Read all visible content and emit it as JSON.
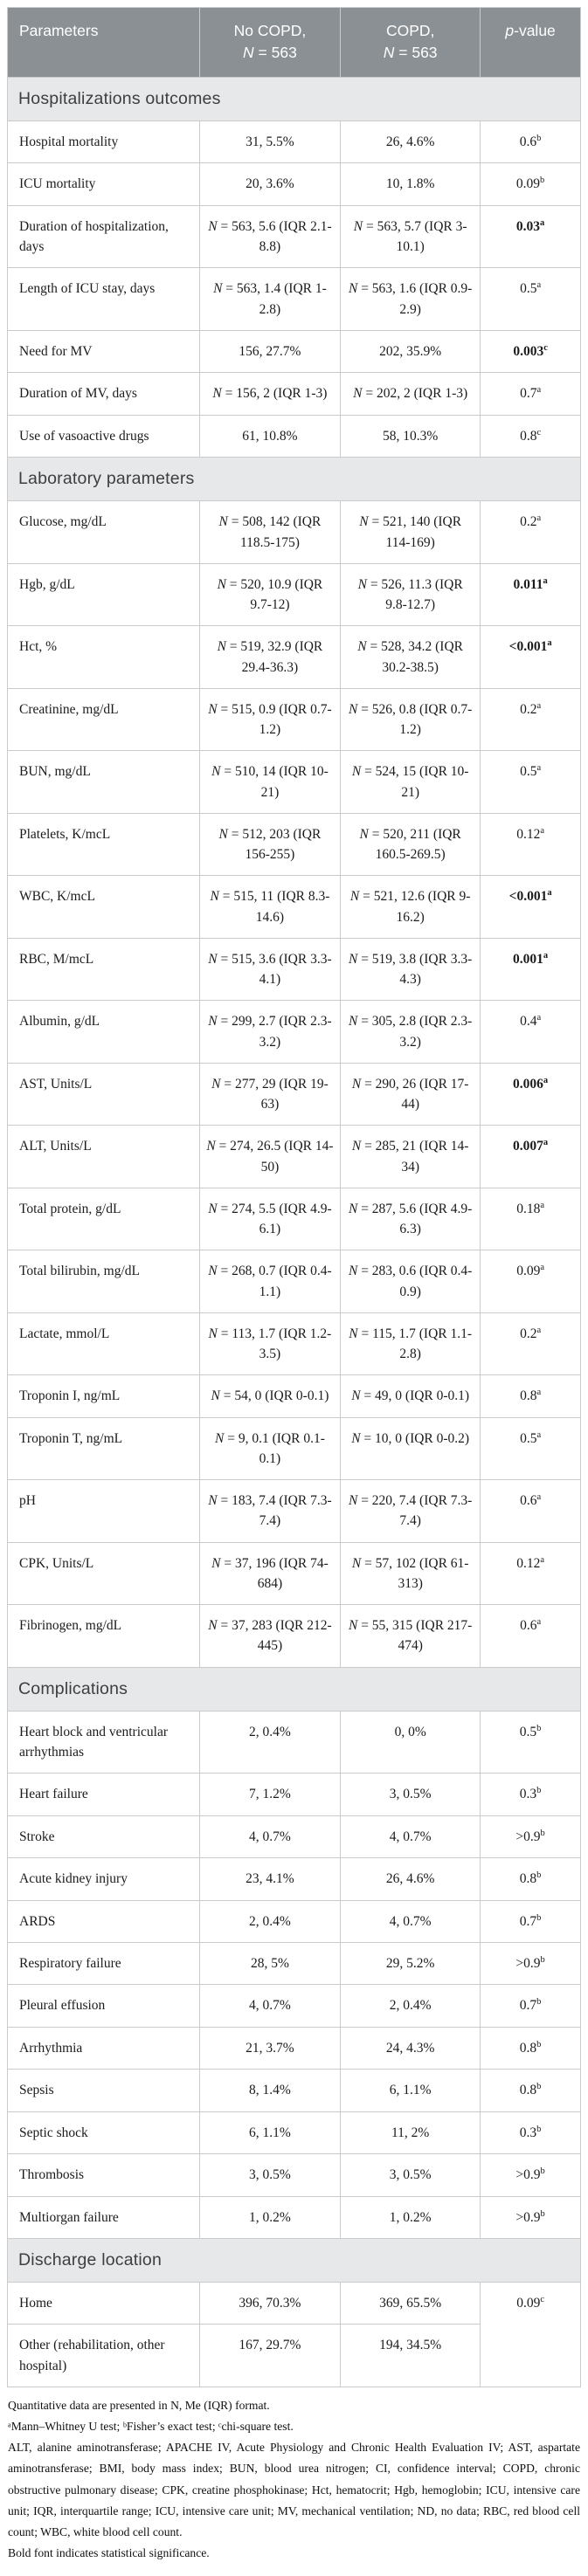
{
  "table": {
    "colors": {
      "header_bg": "#8b9094",
      "header_text": "#ffffff",
      "section_bg": "#e7e8e9",
      "border": "#c9cbcd"
    },
    "columns": [
      {
        "id": "parameters",
        "lines": [
          "Parameters"
        ]
      },
      {
        "id": "no_copd",
        "lines": [
          "No COPD,",
          "N = 563"
        ]
      },
      {
        "id": "copd",
        "lines": [
          "COPD,",
          "N = 563"
        ]
      },
      {
        "id": "p_value",
        "lines": [
          "p-value"
        ]
      }
    ],
    "sections": [
      {
        "title": "Hospitalizations outcomes",
        "rows": [
          {
            "label": "Hospital mortality",
            "no_copd": "31, 5.5%",
            "copd": "26, 4.6%",
            "p": "0.6",
            "p_sup": "b",
            "p_bold": false
          },
          {
            "label": "ICU mortality",
            "no_copd": "20, 3.6%",
            "copd": "10, 1.8%",
            "p": "0.09",
            "p_sup": "b",
            "p_bold": false
          },
          {
            "label": "Duration of hospitalization, days",
            "no_copd": "N = 563, 5.6 (IQR 2.1-8.8)",
            "copd": "N = 563, 5.7 (IQR 3-10.1)",
            "p": "0.03",
            "p_sup": "a",
            "p_bold": true
          },
          {
            "label": "Length of ICU stay, days",
            "no_copd": "N = 563, 1.4 (IQR 1-2.8)",
            "copd": "N = 563, 1.6 (IQR 0.9-2.9)",
            "p": "0.5",
            "p_sup": "a",
            "p_bold": false
          },
          {
            "label": "Need for MV",
            "no_copd": "156, 27.7%",
            "copd": "202, 35.9%",
            "p": "0.003",
            "p_sup": "c",
            "p_bold": true
          },
          {
            "label": "Duration of MV, days",
            "no_copd": "N = 156, 2 (IQR 1-3)",
            "copd": "N = 202, 2 (IQR 1-3)",
            "p": "0.7",
            "p_sup": "a",
            "p_bold": false
          },
          {
            "label": "Use of vasoactive drugs",
            "no_copd": "61, 10.8%",
            "copd": "58, 10.3%",
            "p": "0.8",
            "p_sup": "c",
            "p_bold": false
          }
        ]
      },
      {
        "title": "Laboratory parameters",
        "rows": [
          {
            "label": "Glucose, mg/dL",
            "no_copd": "N = 508, 142 (IQR 118.5-175)",
            "copd": "N = 521, 140 (IQR 114-169)",
            "p": "0.2",
            "p_sup": "a",
            "p_bold": false
          },
          {
            "label": "Hgb, g/dL",
            "no_copd": "N = 520, 10.9 (IQR 9.7-12)",
            "copd": "N = 526, 11.3 (IQR 9.8-12.7)",
            "p": "0.011",
            "p_sup": "a",
            "p_bold": true
          },
          {
            "label": "Hct, %",
            "no_copd": "N = 519, 32.9 (IQR 29.4-36.3)",
            "copd": "N = 528, 34.2 (IQR 30.2-38.5)",
            "p": "<0.001",
            "p_sup": "a",
            "p_bold": true
          },
          {
            "label": "Creatinine, mg/dL",
            "no_copd": "N = 515, 0.9 (IQR 0.7-1.2)",
            "copd": "N = 526, 0.8 (IQR 0.7-1.2)",
            "p": "0.2",
            "p_sup": "a",
            "p_bold": false
          },
          {
            "label": "BUN, mg/dL",
            "no_copd": "N = 510, 14 (IQR 10-21)",
            "copd": "N = 524, 15 (IQR 10-21)",
            "p": "0.5",
            "p_sup": "a",
            "p_bold": false
          },
          {
            "label": "Platelets, K/mcL",
            "no_copd": "N = 512, 203 (IQR 156-255)",
            "copd": "N = 520, 211 (IQR 160.5-269.5)",
            "p": "0.12",
            "p_sup": "a",
            "p_bold": false
          },
          {
            "label": "WBC, K/mcL",
            "no_copd": "N = 515, 11 (IQR 8.3-14.6)",
            "copd": "N = 521, 12.6 (IQR 9-16.2)",
            "p": "<0.001",
            "p_sup": "a",
            "p_bold": true
          },
          {
            "label": "RBC, M/mcL",
            "no_copd": "N = 515, 3.6 (IQR 3.3-4.1)",
            "copd": "N = 519, 3.8 (IQR 3.3-4.3)",
            "p": "0.001",
            "p_sup": "a",
            "p_bold": true
          },
          {
            "label": "Albumin, g/dL",
            "no_copd": "N = 299, 2.7 (IQR 2.3-3.2)",
            "copd": "N = 305, 2.8 (IQR 2.3-3.2)",
            "p": "0.4",
            "p_sup": "a",
            "p_bold": false
          },
          {
            "label": "AST, Units/L",
            "no_copd": "N = 277, 29 (IQR 19-63)",
            "copd": "N = 290, 26 (IQR 17-44)",
            "p": "0.006",
            "p_sup": "a",
            "p_bold": true
          },
          {
            "label": "ALT, Units/L",
            "no_copd": "N = 274, 26.5 (IQR 14-50)",
            "copd": "N = 285, 21 (IQR 14-34)",
            "p": "0.007",
            "p_sup": "a",
            "p_bold": true
          },
          {
            "label": "Total protein, g/dL",
            "no_copd": "N = 274, 5.5 (IQR 4.9-6.1)",
            "copd": "N = 287, 5.6 (IQR 4.9-6.3)",
            "p": "0.18",
            "p_sup": "a",
            "p_bold": false
          },
          {
            "label": "Total bilirubin, mg/dL",
            "no_copd": "N = 268, 0.7 (IQR 0.4-1.1)",
            "copd": "N = 283, 0.6 (IQR 0.4-0.9)",
            "p": "0.09",
            "p_sup": "a",
            "p_bold": false
          },
          {
            "label": "Lactate, mmol/L",
            "no_copd": "N = 113, 1.7 (IQR 1.2-3.5)",
            "copd": "N = 115, 1.7 (IQR 1.1-2.8)",
            "p": "0.2",
            "p_sup": "a",
            "p_bold": false
          },
          {
            "label": "Troponin I, ng/mL",
            "no_copd": "N = 54, 0 (IQR 0-0.1)",
            "copd": "N = 49, 0 (IQR 0-0.1)",
            "p": "0.8",
            "p_sup": "a",
            "p_bold": false
          },
          {
            "label": "Troponin T, ng/mL",
            "no_copd": "N = 9, 0.1 (IQR 0.1-0.1)",
            "copd": "N = 10, 0 (IQR 0-0.2)",
            "p": "0.5",
            "p_sup": "a",
            "p_bold": false
          },
          {
            "label": "pH",
            "no_copd": "N = 183, 7.4 (IQR 7.3-7.4)",
            "copd": "N = 220, 7.4 (IQR 7.3-7.4)",
            "p": "0.6",
            "p_sup": "a",
            "p_bold": false
          },
          {
            "label": "CPK, Units/L",
            "no_copd": "N = 37, 196 (IQR 74-684)",
            "copd": "N = 57, 102 (IQR 61-313)",
            "p": "0.12",
            "p_sup": "a",
            "p_bold": false
          },
          {
            "label": "Fibrinogen, mg/dL",
            "no_copd": "N = 37, 283 (IQR 212-445)",
            "copd": "N = 55, 315 (IQR 217-474)",
            "p": "0.6",
            "p_sup": "a",
            "p_bold": false
          }
        ]
      },
      {
        "title": "Complications",
        "rows": [
          {
            "label": "Heart block and ventricular arrhythmias",
            "no_copd": "2, 0.4%",
            "copd": "0, 0%",
            "p": "0.5",
            "p_sup": "b",
            "p_bold": false
          },
          {
            "label": "Heart failure",
            "no_copd": "7, 1.2%",
            "copd": "3, 0.5%",
            "p": "0.3",
            "p_sup": "b",
            "p_bold": false
          },
          {
            "label": "Stroke",
            "no_copd": "4, 0.7%",
            "copd": "4, 0.7%",
            "p": ">0.9",
            "p_sup": "b",
            "p_bold": false
          },
          {
            "label": "Acute kidney injury",
            "no_copd": "23, 4.1%",
            "copd": "26, 4.6%",
            "p": "0.8",
            "p_sup": "b",
            "p_bold": false
          },
          {
            "label": "ARDS",
            "no_copd": "2, 0.4%",
            "copd": "4, 0.7%",
            "p": "0.7",
            "p_sup": "b",
            "p_bold": false
          },
          {
            "label": "Respiratory failure",
            "no_copd": "28, 5%",
            "copd": "29, 5.2%",
            "p": ">0.9",
            "p_sup": "b",
            "p_bold": false
          },
          {
            "label": "Pleural effusion",
            "no_copd": "4, 0.7%",
            "copd": "2, 0.4%",
            "p": "0.7",
            "p_sup": "b",
            "p_bold": false
          },
          {
            "label": "Arrhythmia",
            "no_copd": "21, 3.7%",
            "copd": "24, 4.3%",
            "p": "0.8",
            "p_sup": "b",
            "p_bold": false
          },
          {
            "label": "Sepsis",
            "no_copd": "8, 1.4%",
            "copd": "6, 1.1%",
            "p": "0.8",
            "p_sup": "b",
            "p_bold": false
          },
          {
            "label": "Septic shock",
            "no_copd": "6, 1.1%",
            "copd": "11, 2%",
            "p": "0.3",
            "p_sup": "b",
            "p_bold": false
          },
          {
            "label": "Thrombosis",
            "no_copd": "3, 0.5%",
            "copd": "3, 0.5%",
            "p": ">0.9",
            "p_sup": "b",
            "p_bold": false
          },
          {
            "label": "Multiorgan failure",
            "no_copd": "1, 0.2%",
            "copd": "1, 0.2%",
            "p": ">0.9",
            "p_sup": "b",
            "p_bold": false
          }
        ]
      },
      {
        "title": "Discharge location",
        "rows": [
          {
            "label": "Home",
            "no_copd": "396, 70.3%",
            "copd": "369, 65.5%",
            "p": "0.09",
            "p_sup": "c",
            "p_bold": false,
            "p_rowspan": 2
          },
          {
            "label": "Other (rehabilitation, other hospital)",
            "no_copd": "167, 29.7%",
            "copd": "194, 34.5%",
            "p_merged": true
          }
        ]
      }
    ]
  },
  "footnotes": [
    {
      "text": "Quantitative data are presented in N, Me (IQR) format.",
      "justify": false
    },
    {
      "text": "ᵃMann–Whitney U test; ᵇFisher’s exact test; ᶜchi-square test.",
      "justify": false
    },
    {
      "text": "ALT, alanine aminotransferase; APACHE IV, Acute Physiology and Chronic Health Evaluation IV; AST, aspartate aminotransferase; BMI, body mass index; BUN, blood urea nitrogen; CI, confidence interval; COPD, chronic obstructive pulmonary disease; CPK, creatine phosphokinase; Hct, hematocrit; Hgb, hemoglobin; ICU, intensive care unit; IQR, interquartile range; ICU, intensive care unit; MV, mechanical ventilation; ND, no data; RBC, red blood cell count; WBC, white blood cell count.",
      "justify": true
    },
    {
      "text": "Bold font indicates statistical significance.",
      "justify": false
    }
  ]
}
